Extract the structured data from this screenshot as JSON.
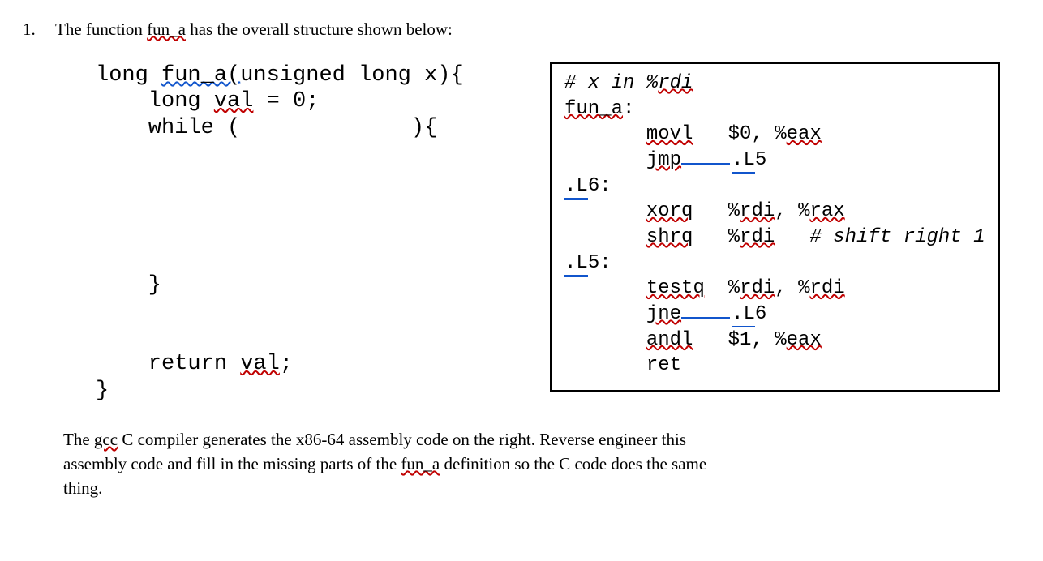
{
  "question": {
    "number": "1.",
    "lead": "The function ",
    "funcname": "fun_a",
    "tail": " has the overall structure shown below:"
  },
  "code": {
    "l1a": "long ",
    "l1_fn": "fun_a(",
    "l1b": "unsigned long x){",
    "l2a": "    long ",
    "l2_val": "val",
    "l2b": " = 0;",
    "l3": "    while (             ){",
    "blank": " ",
    "l_close": "    }",
    "l_ret_a": "    return ",
    "l_ret_val": "val",
    "l_ret_b": ";",
    "l_end": "}"
  },
  "asm": {
    "c1": "# x in %",
    "c1_rdi": "rdi",
    "c2": "fun_a",
    "c2b": ":",
    "movl_op": "movl",
    "movl_args_a": "   $0, %",
    "movl_args_eax": "eax",
    "jmp_op": "jmp",
    "jmp_tgt": ".L",
    "jmp_tgt_b": "5",
    "L6": ".L",
    "L6b": "6:",
    "xorq_op": "xorq",
    "xorq_a": "   %",
    "xorq_rdi": "rdi",
    "xorq_comma": ", %",
    "xorq_rax": "rax",
    "shrq_op": "shrq",
    "shrq_a": "   %",
    "shrq_rdi": "rdi",
    "shrq_cmt": "   # shift right 1",
    "L5": ".L",
    "L5b": "5:",
    "testq_op": "testq",
    "testq_a": "  %",
    "testq_rdi": "rdi",
    "testq_comma": ", %",
    "testq_rdi2": "rdi",
    "jne_op": "jne",
    "jne_tgt": ".L",
    "jne_tgt_b": "6",
    "andl_op": "andl",
    "andl_a": "   $1, %",
    "andl_eax": "eax",
    "ret": "       ret"
  },
  "explain": {
    "p1a": "The ",
    "p1_gcc": "gcc",
    "p1b": " C compiler generates the x86-64 assembly code on the right. Reverse engineer this",
    "p2a": "assembly code and fill in the missing parts of the ",
    "p2_fn": "fun_a",
    "p2b": " definition so the C code does the same",
    "p3": "thing."
  },
  "style": {
    "squiggle_color": "#c00000",
    "link_color": "#1155cc",
    "border_color": "#000000",
    "background": "#ffffff",
    "text_color": "#000000",
    "serif_font": "Georgia",
    "mono_font": "Courier New",
    "question_fontsize": 21,
    "code_fontsize": 27,
    "asm_fontsize": 24
  }
}
